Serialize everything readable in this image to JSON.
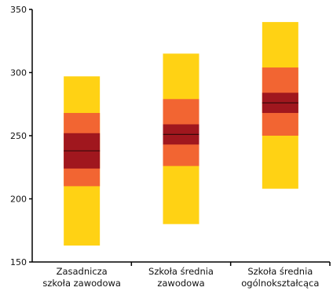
{
  "chart_data": {
    "type": "bar",
    "subtype": "percentile-band",
    "title": "",
    "xlabel": "",
    "ylabel": "",
    "ylim": [
      150,
      350
    ],
    "yticks": [
      150,
      200,
      250,
      300,
      350
    ],
    "grid": false,
    "colors": {
      "p5_p95": "#FFD214",
      "p25_p75": "#F26532",
      "ci": "#A0171E",
      "median_line": "#3a0a0a",
      "axis": "#000000"
    },
    "categories": [
      {
        "label_lines": [
          "Zasadnicza",
          "szkoła zawodowa"
        ],
        "p5": 163,
        "p25": 210,
        "ci_low": 224,
        "median": 238,
        "ci_high": 252,
        "p75": 268,
        "p95": 297
      },
      {
        "label_lines": [
          "Szkoła średnia",
          "zawodowa"
        ],
        "p5": 180,
        "p25": 226,
        "ci_low": 243,
        "median": 251,
        "ci_high": 259,
        "p75": 279,
        "p95": 315
      },
      {
        "label_lines": [
          "Szkoła średnia",
          "ogólnokształcąca"
        ],
        "p5": 208,
        "p25": 250,
        "ci_low": 268,
        "median": 276,
        "ci_high": 284,
        "p75": 304,
        "p95": 340
      }
    ]
  }
}
